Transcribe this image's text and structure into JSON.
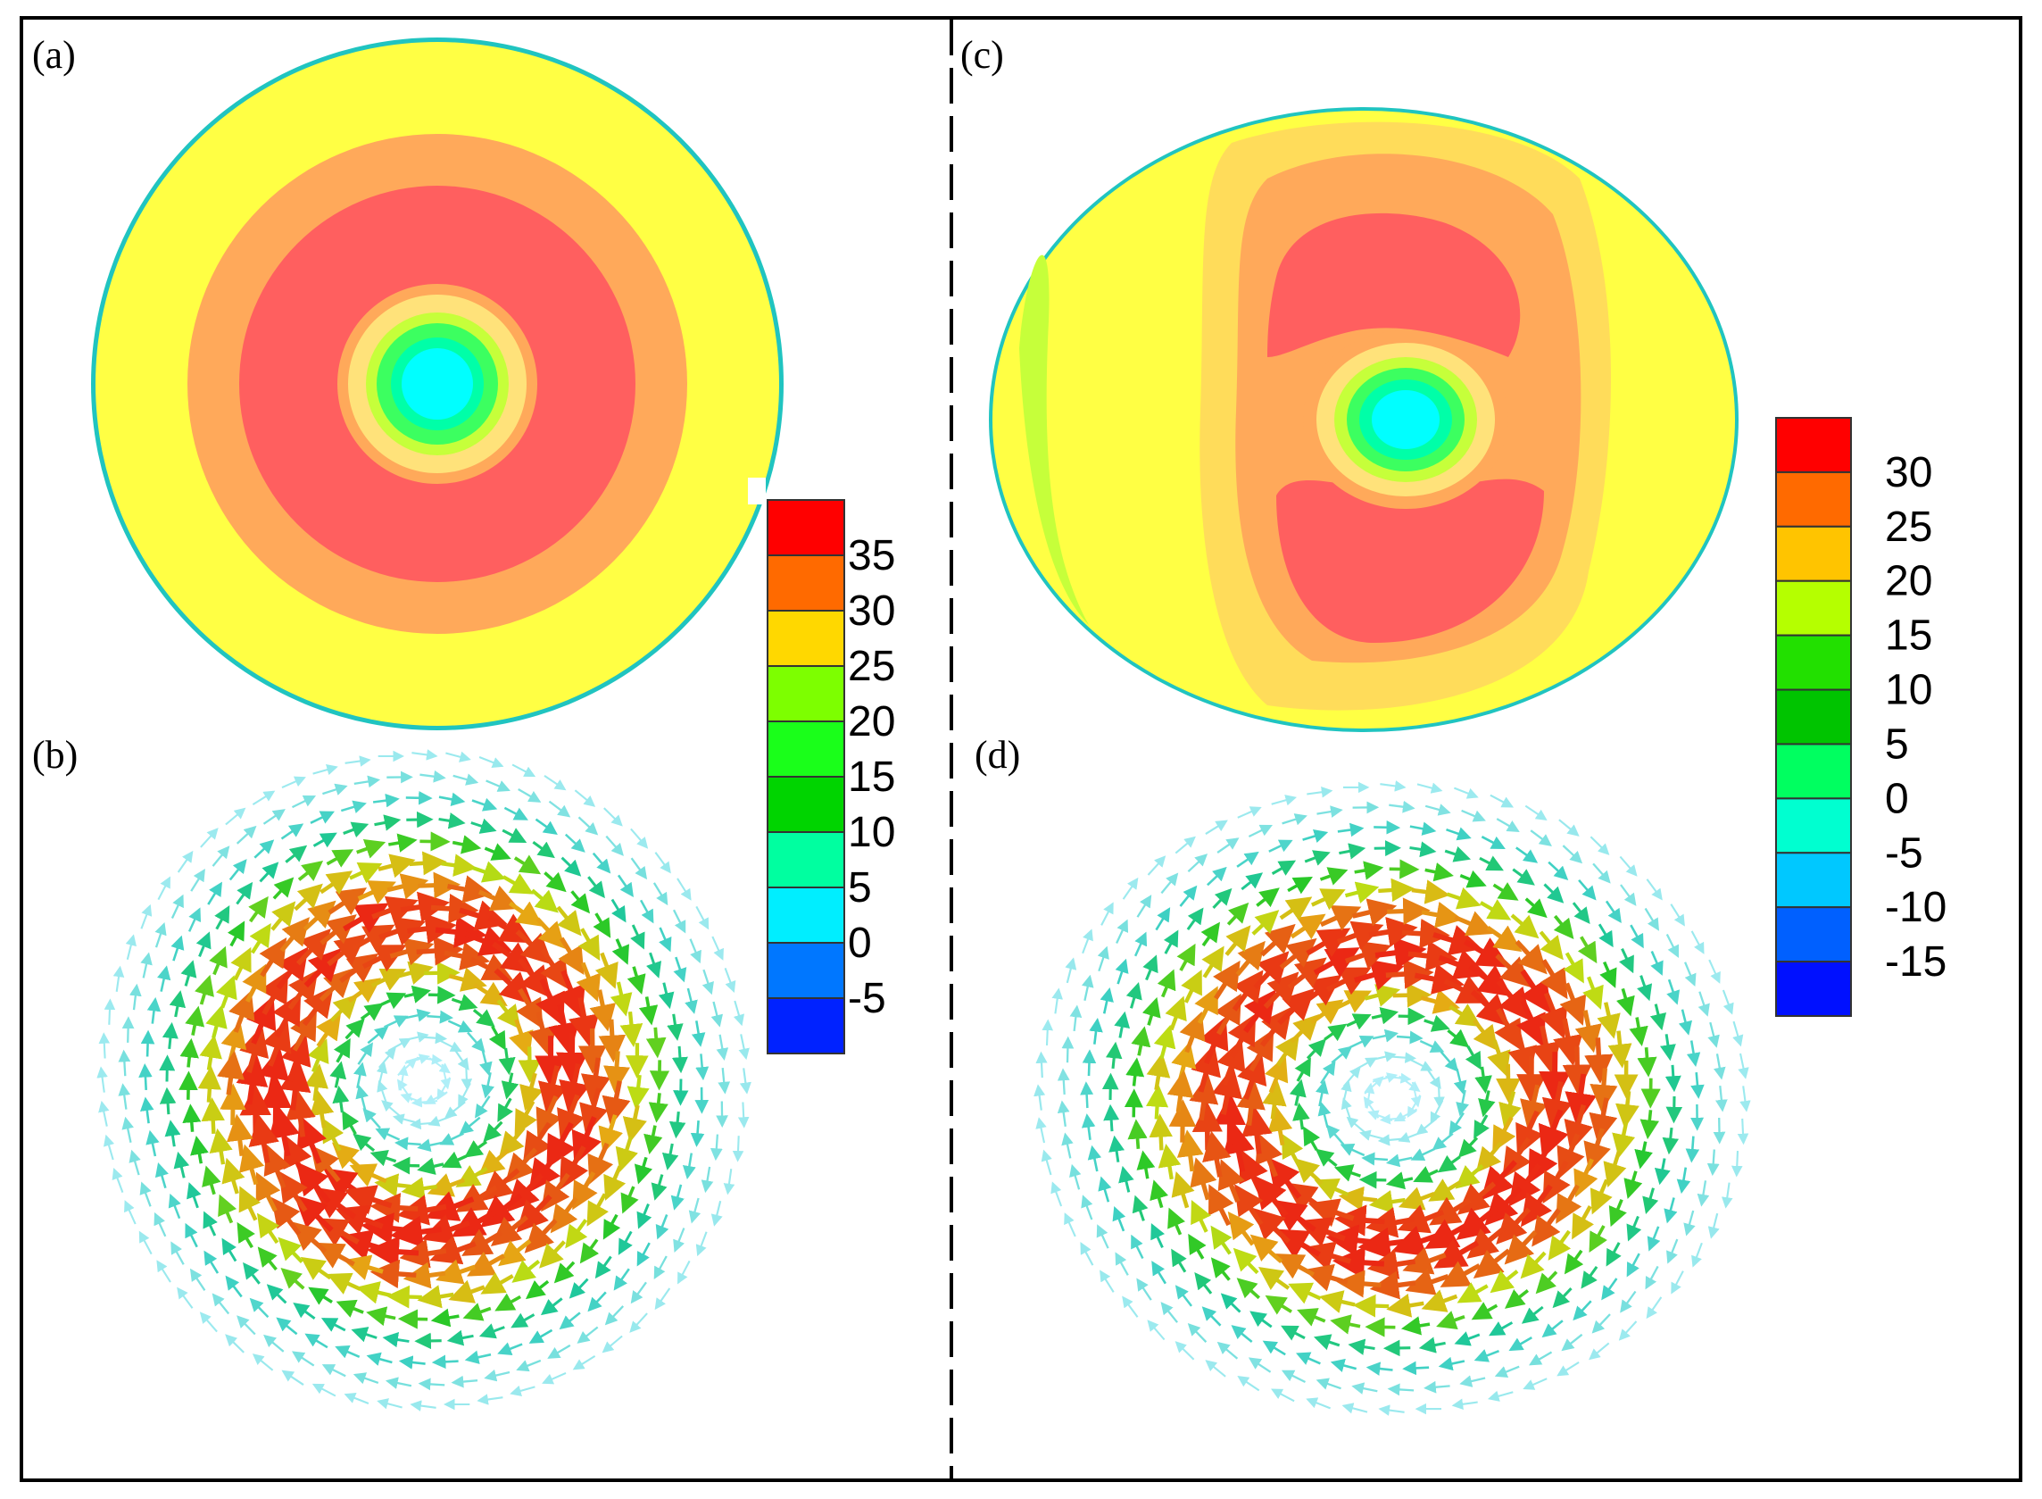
{
  "panels": [
    {
      "id": "a",
      "label": "(a)",
      "kind": "contour",
      "shape": "circle"
    },
    {
      "id": "b",
      "label": "(b)",
      "kind": "vector",
      "shape": "circle"
    },
    {
      "id": "c",
      "label": "(c)",
      "kind": "contour",
      "shape": "ellipse"
    },
    {
      "id": "d",
      "label": "(d)",
      "kind": "vector",
      "shape": "ellipse"
    }
  ],
  "colorbars": [
    {
      "id": "left",
      "labels": [
        "35",
        "30",
        "25",
        "20",
        "15",
        "10",
        "5",
        "0",
        "-5"
      ],
      "colors": [
        "#ff0000",
        "#ff6a00",
        "#ffd800",
        "#7dff00",
        "#1aff1a",
        "#00d400",
        "#00ffa0",
        "#00eeff",
        "#0077ff",
        "#0022ff"
      ]
    },
    {
      "id": "right",
      "labels": [
        "30",
        "25",
        "20",
        "15",
        "10",
        "5",
        "0",
        "-5",
        "-10",
        "-15"
      ],
      "colors": [
        "#ff0000",
        "#ff6a00",
        "#ffc400",
        "#b5ff00",
        "#22e000",
        "#00c400",
        "#00ff60",
        "#00ffd0",
        "#00c8ff",
        "#0060ff",
        "#0010ff"
      ]
    }
  ],
  "contour_colors": {
    "background": "#ffff44",
    "band_orange": "#ffa95a",
    "core_red": "#ff5f5f",
    "inner_yellow": "#ffe27a",
    "inner_green": "#3cff60",
    "center_cyan": "#00ffff",
    "rim": "#20c4c0"
  }
}
